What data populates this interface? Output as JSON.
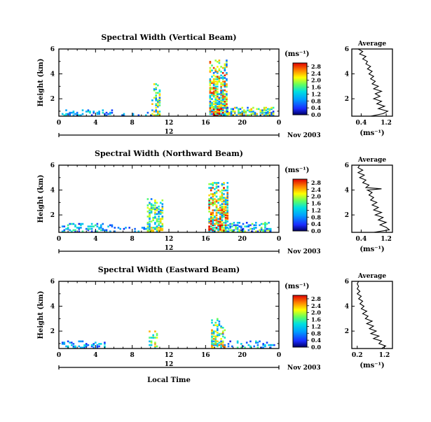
{
  "chart_data": [
    {
      "type": "heatmap",
      "title": "Spectral Width (Vertical Beam)",
      "ylabel": "Height (km)",
      "xticks": [
        "0",
        "4",
        "8",
        "12",
        "16",
        "20",
        "0"
      ],
      "yticks": [
        "2",
        "4",
        "6"
      ],
      "ylim": [
        0.6,
        6.0
      ],
      "xlim": [
        0,
        24
      ],
      "date_day": "12",
      "date_label": "Nov 2003",
      "colorbar": {
        "unit": "(ms⁻¹)",
        "ticks": [
          "0.0",
          "0.4",
          "0.8",
          "1.2",
          "1.6",
          "2.0",
          "2.4",
          "2.8"
        ],
        "range": [
          0,
          3.0
        ]
      },
      "average": {
        "title": "Average",
        "xlabel": "(ms⁻¹)",
        "xticks": [
          "0.4",
          "1.2"
        ],
        "yticks": [
          "2",
          "4",
          "6"
        ],
        "xlim": [
          0.1,
          1.4
        ],
        "ylim": [
          0.6,
          6.0
        ],
        "profile": [
          [
            0.7,
            0.6
          ],
          [
            1.1,
            0.8
          ],
          [
            1.25,
            1.0
          ],
          [
            0.95,
            1.2
          ],
          [
            1.15,
            1.4
          ],
          [
            0.9,
            1.6
          ],
          [
            1.05,
            1.8
          ],
          [
            0.8,
            2.0
          ],
          [
            1.0,
            2.2
          ],
          [
            0.85,
            2.4
          ],
          [
            1.05,
            2.6
          ],
          [
            0.8,
            2.8
          ],
          [
            0.95,
            3.0
          ],
          [
            0.75,
            3.2
          ],
          [
            0.85,
            3.4
          ],
          [
            0.7,
            3.6
          ],
          [
            0.8,
            3.8
          ],
          [
            0.65,
            4.0
          ],
          [
            0.75,
            4.2
          ],
          [
            0.6,
            4.4
          ],
          [
            0.7,
            4.6
          ],
          [
            0.55,
            4.8
          ],
          [
            0.6,
            5.0
          ],
          [
            0.45,
            5.2
          ],
          [
            0.55,
            5.4
          ],
          [
            0.35,
            5.6
          ],
          [
            0.45,
            5.8
          ],
          [
            0.3,
            6.0
          ]
        ]
      },
      "data_regions": [
        {
          "t0": 0.3,
          "t1": 6.0,
          "h0": 0.6,
          "h1": 1.0,
          "density": 0.45,
          "min": 0.3,
          "max": 1.6
        },
        {
          "t0": 6.0,
          "t1": 10.0,
          "h0": 0.6,
          "h1": 0.8,
          "density": 0.25,
          "min": 0.3,
          "max": 1.2
        },
        {
          "t0": 10.1,
          "t1": 11.0,
          "h0": 0.6,
          "h1": 3.2,
          "density": 0.5,
          "min": 0.6,
          "max": 2.4
        },
        {
          "t0": 16.4,
          "t1": 18.3,
          "h0": 0.6,
          "h1": 5.0,
          "density": 0.8,
          "min": 0.6,
          "max": 3.0
        },
        {
          "t0": 18.3,
          "t1": 23.4,
          "h0": 0.6,
          "h1": 1.3,
          "density": 0.7,
          "min": 0.3,
          "max": 2.4
        }
      ]
    },
    {
      "type": "heatmap",
      "title": "Spectral Width (Northward Beam)",
      "ylabel": "Height (km)",
      "xticks": [
        "0",
        "4",
        "8",
        "12",
        "16",
        "20",
        "0"
      ],
      "yticks": [
        "2",
        "4",
        "6"
      ],
      "ylim": [
        0.6,
        6.0
      ],
      "xlim": [
        0,
        24
      ],
      "date_day": "12",
      "date_label": "Nov 2003",
      "colorbar": {
        "unit": "(ms⁻¹)",
        "ticks": [
          "0.0",
          "0.4",
          "0.8",
          "1.2",
          "1.6",
          "2.0",
          "2.4",
          "2.8"
        ],
        "range": [
          0,
          3.0
        ]
      },
      "average": {
        "title": "Average",
        "xlabel": "(ms⁻¹)",
        "xticks": [
          "0.4",
          "1.2"
        ],
        "yticks": [
          "2",
          "4",
          "6"
        ],
        "xlim": [
          0.1,
          1.4
        ],
        "ylim": [
          0.6,
          6.0
        ],
        "profile": [
          [
            0.8,
            0.6
          ],
          [
            1.3,
            0.8
          ],
          [
            1.2,
            1.0
          ],
          [
            1.0,
            1.2
          ],
          [
            1.2,
            1.4
          ],
          [
            0.95,
            1.6
          ],
          [
            1.1,
            1.8
          ],
          [
            0.85,
            2.0
          ],
          [
            1.05,
            2.2
          ],
          [
            0.8,
            2.4
          ],
          [
            0.95,
            2.6
          ],
          [
            0.75,
            2.8
          ],
          [
            0.9,
            3.0
          ],
          [
            0.7,
            3.2
          ],
          [
            0.8,
            3.4
          ],
          [
            0.65,
            3.6
          ],
          [
            0.75,
            3.8
          ],
          [
            0.6,
            4.0
          ],
          [
            1.05,
            4.1
          ],
          [
            0.55,
            4.2
          ],
          [
            0.65,
            4.4
          ],
          [
            0.45,
            4.6
          ],
          [
            0.55,
            4.8
          ],
          [
            0.35,
            5.0
          ],
          [
            0.5,
            5.2
          ],
          [
            0.3,
            5.4
          ],
          [
            0.45,
            5.6
          ],
          [
            0.3,
            5.8
          ],
          [
            0.35,
            6.0
          ]
        ]
      },
      "data_regions": [
        {
          "t0": 0.3,
          "t1": 6.0,
          "h0": 0.6,
          "h1": 1.3,
          "density": 0.4,
          "min": 0.3,
          "max": 1.6
        },
        {
          "t0": 6.0,
          "t1": 10.0,
          "h0": 0.6,
          "h1": 0.9,
          "density": 0.25,
          "min": 0.3,
          "max": 1.2
        },
        {
          "t0": 9.6,
          "t1": 11.3,
          "h0": 0.6,
          "h1": 3.3,
          "density": 0.65,
          "min": 0.6,
          "max": 2.4
        },
        {
          "t0": 16.3,
          "t1": 18.4,
          "h0": 0.6,
          "h1": 4.6,
          "density": 0.8,
          "min": 0.6,
          "max": 3.0
        },
        {
          "t0": 18.4,
          "t1": 23.0,
          "h0": 0.6,
          "h1": 1.4,
          "density": 0.55,
          "min": 0.3,
          "max": 2.0
        }
      ]
    },
    {
      "type": "heatmap",
      "title": "Spectral Width (Eastward Beam)",
      "ylabel": "Height (km)",
      "xlabel": "Local Time",
      "xticks": [
        "0",
        "4",
        "8",
        "12",
        "16",
        "20",
        "0"
      ],
      "yticks": [
        "2",
        "4",
        "6"
      ],
      "ylim": [
        0.6,
        6.0
      ],
      "xlim": [
        0,
        24
      ],
      "date_day": "12",
      "date_label": "Nov 2003",
      "colorbar": {
        "unit": "(ms⁻¹)",
        "ticks": [
          "0.0",
          "0.4",
          "0.8",
          "1.2",
          "1.6",
          "2.0",
          "2.4",
          "2.8"
        ],
        "range": [
          0,
          3.0
        ]
      },
      "average": {
        "title": "Average",
        "xlabel": "(ms⁻¹)",
        "xticks": [
          "0.2",
          "1.2"
        ],
        "yticks": [
          "2",
          "4",
          "6"
        ],
        "xlim": [
          0.0,
          1.5
        ],
        "ylim": [
          0.6,
          6.0
        ],
        "profile": [
          [
            1.1,
            0.6
          ],
          [
            1.25,
            0.8
          ],
          [
            1.0,
            1.0
          ],
          [
            1.1,
            1.2
          ],
          [
            0.8,
            1.4
          ],
          [
            1.0,
            1.6
          ],
          [
            0.7,
            1.8
          ],
          [
            0.9,
            2.0
          ],
          [
            0.65,
            2.2
          ],
          [
            0.8,
            2.4
          ],
          [
            0.55,
            2.6
          ],
          [
            0.75,
            2.8
          ],
          [
            0.5,
            3.0
          ],
          [
            0.6,
            3.2
          ],
          [
            0.4,
            3.4
          ],
          [
            0.55,
            3.6
          ],
          [
            0.35,
            3.8
          ],
          [
            0.45,
            4.0
          ],
          [
            0.3,
            4.2
          ],
          [
            0.4,
            4.4
          ],
          [
            0.25,
            4.6
          ],
          [
            0.35,
            4.8
          ],
          [
            0.2,
            5.0
          ],
          [
            0.3,
            5.2
          ],
          [
            0.2,
            5.4
          ],
          [
            0.25,
            5.6
          ],
          [
            0.2,
            5.8
          ],
          [
            0.25,
            6.0
          ]
        ]
      },
      "data_regions": [
        {
          "t0": 0.3,
          "t1": 5.0,
          "h0": 0.6,
          "h1": 1.2,
          "density": 0.35,
          "min": 0.3,
          "max": 1.4
        },
        {
          "t0": 9.8,
          "t1": 10.6,
          "h0": 0.6,
          "h1": 2.0,
          "density": 0.5,
          "min": 0.6,
          "max": 2.6
        },
        {
          "t0": 16.6,
          "t1": 18.0,
          "h0": 0.6,
          "h1": 3.0,
          "density": 0.5,
          "min": 0.6,
          "max": 2.6
        },
        {
          "t0": 18.4,
          "t1": 23.5,
          "h0": 0.6,
          "h1": 1.1,
          "density": 0.3,
          "min": 0.3,
          "max": 1.6
        }
      ]
    }
  ]
}
